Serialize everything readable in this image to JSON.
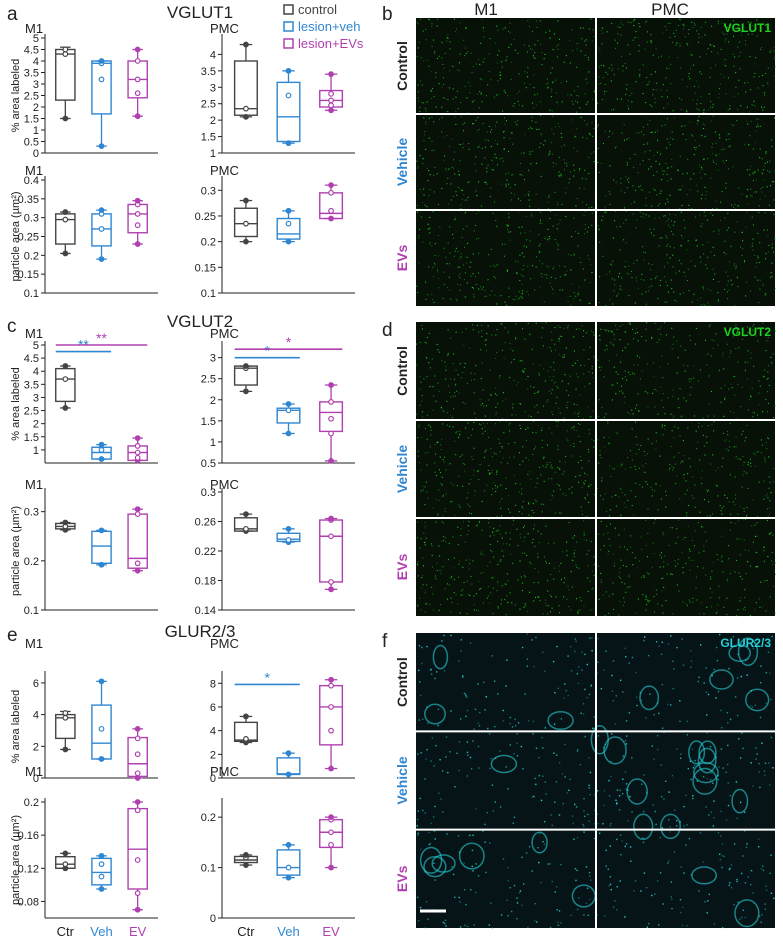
{
  "panel_letters": [
    "a",
    "b",
    "c",
    "d",
    "e",
    "f"
  ],
  "section_titles": [
    "VGLUT1",
    "VGLUT2",
    "GLUR2/3"
  ],
  "group_labels": [
    "Ctr",
    "Veh",
    "EV"
  ],
  "legend": [
    {
      "label": "control",
      "color": "#444444"
    },
    {
      "label": "lesion+veh",
      "color": "#2f86d1"
    },
    {
      "label": "lesion+EVs",
      "color": "#b040b0"
    }
  ],
  "colors": {
    "control": "#444444",
    "vehicle": "#2f86d1",
    "evs": "#b040b0",
    "vglut": "#1ed21e",
    "glur": "#24cfd6"
  },
  "micro_column_labels": [
    "M1",
    "PMC"
  ],
  "micro_row_labels": [
    "Control",
    "Vehicle",
    "EVs"
  ],
  "micro_panels": [
    {
      "letter": "b",
      "marker": "VGLUT1",
      "color": "#1ed21e"
    },
    {
      "letter": "d",
      "marker": "VGLUT2",
      "color": "#1ed21e"
    },
    {
      "letter": "f",
      "marker": "GLUR2/3",
      "color": "#24cfd6"
    }
  ],
  "chart_data": [
    {
      "type": "box",
      "title": "M1",
      "ylabel": "% area labeled",
      "ylim": [
        0,
        5
      ],
      "yticks": [
        "0",
        "0.5",
        "1",
        "1.5",
        "2",
        "2.5",
        "3",
        "3.5",
        "4",
        "4.5",
        "5"
      ],
      "categories": [
        "Ctr",
        "Veh",
        "EV"
      ],
      "series": [
        {
          "min": 1.5,
          "q1": 2.3,
          "median": 4.3,
          "q3": 4.5,
          "max": 4.6,
          "points": [
            1.5,
            4.3,
            4.5
          ]
        },
        {
          "min": 0.3,
          "q1": 1.7,
          "median": 3.9,
          "q3": 4.0,
          "max": 4.0,
          "points": [
            0.3,
            3.2,
            3.9,
            4.0
          ]
        },
        {
          "min": 1.6,
          "q1": 2.4,
          "median": 3.2,
          "q3": 4.0,
          "max": 4.5,
          "points": [
            1.6,
            2.6,
            3.2,
            4.0,
            4.5
          ]
        }
      ]
    },
    {
      "type": "box",
      "title": "PMC",
      "ylabel": "",
      "ylim": [
        1,
        4.5
      ],
      "yticks": [
        "1",
        "1.5",
        "2",
        "2.5",
        "3",
        "3.5",
        "4"
      ],
      "categories": [
        "Ctr",
        "Veh",
        "EV"
      ],
      "series": [
        {
          "min": 2.1,
          "q1": 2.15,
          "median": 2.35,
          "q3": 3.8,
          "max": 4.3,
          "points": [
            2.1,
            2.35,
            4.3
          ]
        },
        {
          "min": 1.3,
          "q1": 1.35,
          "median": 2.1,
          "q3": 3.15,
          "max": 3.5,
          "points": [
            1.3,
            2.75,
            3.5
          ]
        },
        {
          "min": 2.3,
          "q1": 2.4,
          "median": 2.6,
          "q3": 2.9,
          "max": 3.4,
          "points": [
            2.3,
            2.45,
            2.6,
            2.8,
            3.4
          ]
        }
      ]
    },
    {
      "type": "box",
      "title": "M1",
      "ylabel": "particle area (µm²)",
      "ylim": [
        0.1,
        0.4
      ],
      "yticks": [
        "0.1",
        "0.15",
        "0.2",
        "0.25",
        "0.3",
        "0.35",
        "0.4"
      ],
      "categories": [
        "Ctr",
        "Veh",
        "EV"
      ],
      "series": [
        {
          "min": 0.205,
          "q1": 0.23,
          "median": 0.295,
          "q3": 0.31,
          "max": 0.315,
          "points": [
            0.205,
            0.295,
            0.315
          ]
        },
        {
          "min": 0.19,
          "q1": 0.225,
          "median": 0.27,
          "q3": 0.31,
          "max": 0.32,
          "points": [
            0.19,
            0.27,
            0.31,
            0.32
          ]
        },
        {
          "min": 0.23,
          "q1": 0.26,
          "median": 0.31,
          "q3": 0.335,
          "max": 0.345,
          "points": [
            0.23,
            0.28,
            0.31,
            0.335,
            0.345
          ]
        }
      ]
    },
    {
      "type": "box",
      "title": "PMC",
      "ylabel": "",
      "ylim": [
        0.1,
        0.32
      ],
      "yticks": [
        "0.1",
        "0.15",
        "0.2",
        "0.25",
        "0.3"
      ],
      "categories": [
        "Ctr",
        "Veh",
        "EV"
      ],
      "series": [
        {
          "min": 0.2,
          "q1": 0.21,
          "median": 0.235,
          "q3": 0.265,
          "max": 0.28,
          "points": [
            0.2,
            0.235,
            0.28
          ]
        },
        {
          "min": 0.2,
          "q1": 0.205,
          "median": 0.215,
          "q3": 0.245,
          "max": 0.26,
          "points": [
            0.2,
            0.235,
            0.26
          ]
        },
        {
          "min": 0.245,
          "q1": 0.245,
          "median": 0.255,
          "q3": 0.295,
          "max": 0.31,
          "points": [
            0.245,
            0.26,
            0.295,
            0.31
          ]
        }
      ]
    },
    {
      "type": "box",
      "title": "M1",
      "ylabel": "% area labeled",
      "ylim": [
        0.5,
        5
      ],
      "yticks": [
        "1",
        "1.5",
        "2",
        "2.5",
        "3",
        "3.5",
        "4",
        "4.5",
        "5"
      ],
      "categories": [
        "Ctr",
        "Veh",
        "EV"
      ],
      "series": [
        {
          "min": 2.6,
          "q1": 2.85,
          "median": 3.7,
          "q3": 4.1,
          "max": 4.2,
          "points": [
            2.6,
            3.7,
            4.2
          ]
        },
        {
          "min": 0.65,
          "q1": 0.65,
          "median": 0.9,
          "q3": 1.1,
          "max": 1.2,
          "points": [
            0.65,
            1.0,
            1.2
          ]
        },
        {
          "min": 0.6,
          "q1": 0.6,
          "median": 0.9,
          "q3": 1.15,
          "max": 1.45,
          "points": [
            0.6,
            0.7,
            0.9,
            1.15,
            1.45
          ]
        }
      ],
      "significance": [
        {
          "label": "**",
          "from": 0,
          "to": 1,
          "y": 4.75,
          "color": "#2f86d1"
        },
        {
          "label": "**",
          "from": 0,
          "to": 2,
          "y": 5.0,
          "color": "#b040b0"
        }
      ]
    },
    {
      "type": "box",
      "title": "PMC",
      "ylabel": "",
      "ylim": [
        0.5,
        3.3
      ],
      "yticks": [
        "0.5",
        "1",
        "1.5",
        "2",
        "2.5",
        "3"
      ],
      "categories": [
        "Ctr",
        "Veh",
        "EV"
      ],
      "series": [
        {
          "min": 2.2,
          "q1": 2.35,
          "median": 2.75,
          "q3": 2.8,
          "max": 2.8,
          "points": [
            2.2,
            2.75,
            2.8
          ]
        },
        {
          "min": 1.2,
          "q1": 1.45,
          "median": 1.75,
          "q3": 1.8,
          "max": 1.9,
          "points": [
            1.2,
            1.75,
            1.9
          ]
        },
        {
          "min": 0.55,
          "q1": 1.25,
          "median": 1.7,
          "q3": 1.95,
          "max": 2.35,
          "points": [
            0.55,
            1.2,
            1.55,
            1.95,
            2.35
          ]
        }
      ],
      "significance": [
        {
          "label": "*",
          "from": 0,
          "to": 1,
          "y": 3.0,
          "color": "#2f86d1"
        },
        {
          "label": "*",
          "from": 0,
          "to": 2,
          "y": 3.2,
          "color": "#b040b0"
        }
      ]
    },
    {
      "type": "box",
      "title": "M1",
      "ylabel": "particle area (µm²)",
      "ylim": [
        0.1,
        0.34
      ],
      "yticks": [
        "0.1",
        "0.2",
        "0.3"
      ],
      "categories": [
        "Ctr",
        "Veh",
        "EV"
      ],
      "series": [
        {
          "min": 0.263,
          "q1": 0.265,
          "median": 0.27,
          "q3": 0.276,
          "max": 0.278,
          "points": [
            0.263,
            0.27,
            0.278
          ]
        },
        {
          "min": 0.192,
          "q1": 0.195,
          "median": 0.23,
          "q3": 0.26,
          "max": 0.262,
          "points": [
            0.192,
            0.262
          ]
        },
        {
          "min": 0.18,
          "q1": 0.185,
          "median": 0.205,
          "q3": 0.295,
          "max": 0.305,
          "points": [
            0.18,
            0.195,
            0.295,
            0.305
          ]
        }
      ]
    },
    {
      "type": "box",
      "title": "PMC",
      "ylabel": "",
      "ylim": [
        0.14,
        0.3
      ],
      "yticks": [
        "0.14",
        "0.18",
        "0.22",
        "0.26",
        "0.3"
      ],
      "categories": [
        "Ctr",
        "Veh",
        "EV"
      ],
      "series": [
        {
          "min": 0.247,
          "q1": 0.247,
          "median": 0.25,
          "q3": 0.265,
          "max": 0.27,
          "points": [
            0.247,
            0.25,
            0.27
          ]
        },
        {
          "min": 0.232,
          "q1": 0.233,
          "median": 0.236,
          "q3": 0.244,
          "max": 0.25,
          "points": [
            0.232,
            0.235,
            0.25
          ]
        },
        {
          "min": 0.168,
          "q1": 0.178,
          "median": 0.24,
          "q3": 0.262,
          "max": 0.264,
          "points": [
            0.168,
            0.178,
            0.24,
            0.262,
            0.264
          ]
        }
      ]
    },
    {
      "type": "box",
      "title": "M1",
      "ylabel": "% area labeled",
      "ylim": [
        0,
        6.5
      ],
      "yticks": [
        "0",
        "2",
        "4",
        "6"
      ],
      "categories": [
        "Ctr",
        "Veh",
        "EV"
      ],
      "series": [
        {
          "min": 1.8,
          "q1": 2.5,
          "median": 3.8,
          "q3": 4.0,
          "max": 4.2,
          "points": [
            1.8,
            3.8,
            4.1
          ]
        },
        {
          "min": 1.2,
          "q1": 1.2,
          "median": 2.2,
          "q3": 4.6,
          "max": 6.1,
          "points": [
            1.2,
            3.1,
            6.1
          ]
        },
        {
          "min": 0.0,
          "q1": 0.1,
          "median": 0.9,
          "q3": 2.55,
          "max": 3.1,
          "points": [
            0.0,
            0.3,
            1.5,
            2.5,
            3.1
          ]
        }
      ]
    },
    {
      "type": "box",
      "title": "PMC",
      "ylabel": "",
      "ylim": [
        0,
        8.7
      ],
      "yticks": [
        "0",
        "2",
        "4",
        "6",
        "8"
      ],
      "categories": [
        "Ctr",
        "Veh",
        "EV"
      ],
      "series": [
        {
          "min": 3.0,
          "q1": 3.1,
          "median": 3.2,
          "q3": 4.7,
          "max": 5.2,
          "points": [
            3.0,
            3.3,
            5.2
          ]
        },
        {
          "min": 0.3,
          "q1": 0.3,
          "median": 0.35,
          "q3": 1.7,
          "max": 2.1,
          "points": [
            0.3,
            2.1
          ]
        },
        {
          "min": 0.8,
          "q1": 2.8,
          "median": 6.0,
          "q3": 7.8,
          "max": 8.3,
          "points": [
            0.8,
            4.0,
            6.0,
            7.8,
            8.3
          ]
        }
      ],
      "significance": [
        {
          "label": "*",
          "from": 0,
          "to": 1,
          "y": 7.9,
          "color": "#2f86d1"
        }
      ]
    },
    {
      "type": "box",
      "title": "M1",
      "ylabel": "particle area (µm²)",
      "ylim": [
        0.06,
        0.2
      ],
      "yticks": [
        "0.08",
        "0.12",
        "0.16",
        "0.2"
      ],
      "categories": [
        "Ctr",
        "Veh",
        "EV"
      ],
      "series": [
        {
          "min": 0.12,
          "q1": 0.12,
          "median": 0.125,
          "q3": 0.134,
          "max": 0.138,
          "points": [
            0.12,
            0.125,
            0.138
          ]
        },
        {
          "min": 0.095,
          "q1": 0.1,
          "median": 0.115,
          "q3": 0.132,
          "max": 0.135,
          "points": [
            0.095,
            0.11,
            0.125,
            0.135
          ]
        },
        {
          "min": 0.07,
          "q1": 0.095,
          "median": 0.143,
          "q3": 0.192,
          "max": 0.2,
          "points": [
            0.07,
            0.09,
            0.13,
            0.19,
            0.2
          ]
        }
      ]
    },
    {
      "type": "box",
      "title": "PMC",
      "ylabel": "",
      "ylim": [
        0,
        0.23
      ],
      "yticks": [
        "0",
        "0.1",
        "0.2"
      ],
      "categories": [
        "Ctr",
        "Veh",
        "EV"
      ],
      "series": [
        {
          "min": 0.105,
          "q1": 0.11,
          "median": 0.115,
          "q3": 0.122,
          "max": 0.125,
          "points": [
            0.105,
            0.12,
            0.125
          ]
        },
        {
          "min": 0.08,
          "q1": 0.085,
          "median": 0.1,
          "q3": 0.135,
          "max": 0.145,
          "points": [
            0.08,
            0.1,
            0.145
          ]
        },
        {
          "min": 0.1,
          "q1": 0.14,
          "median": 0.17,
          "q3": 0.195,
          "max": 0.2,
          "points": [
            0.1,
            0.145,
            0.17,
            0.195,
            0.2
          ]
        }
      ]
    }
  ]
}
